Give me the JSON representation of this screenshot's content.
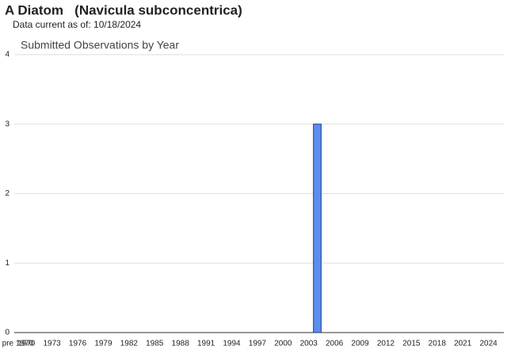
{
  "chart_data": {
    "type": "bar",
    "title": "A Diatom   (Navicula subconcentrica)",
    "subtitle": "Data current as of: 10/18/2024",
    "chart_title": "Submitted Observations by Year",
    "categories": [
      "pre 1970",
      "1970",
      null,
      null,
      "1973",
      null,
      null,
      "1976",
      null,
      null,
      "1979",
      null,
      null,
      "1982",
      null,
      null,
      "1985",
      null,
      null,
      "1988",
      null,
      null,
      "1991",
      null,
      null,
      "1994",
      null,
      null,
      "1997",
      null,
      null,
      "2000",
      null,
      null,
      "2003",
      null,
      null,
      "2006",
      null,
      null,
      "2009",
      null,
      null,
      "2012",
      null,
      null,
      "2015",
      null,
      null,
      "2018",
      null,
      null,
      "2021",
      null,
      null,
      "2024"
    ],
    "values": [
      0,
      0,
      0,
      0,
      0,
      0,
      0,
      0,
      0,
      0,
      0,
      0,
      0,
      0,
      0,
      0,
      0,
      0,
      0,
      0,
      0,
      0,
      0,
      0,
      0,
      0,
      0,
      0,
      0,
      0,
      0,
      0,
      0,
      0,
      0,
      3,
      0,
      0,
      0,
      0,
      0,
      0,
      0,
      0,
      0,
      0,
      0,
      0,
      0,
      0,
      0,
      0,
      0,
      0,
      0,
      0
    ],
    "color": "#5b8def",
    "ylim": [
      0,
      4
    ],
    "yticks": [
      0,
      1,
      2,
      3,
      4
    ],
    "grid": true
  }
}
